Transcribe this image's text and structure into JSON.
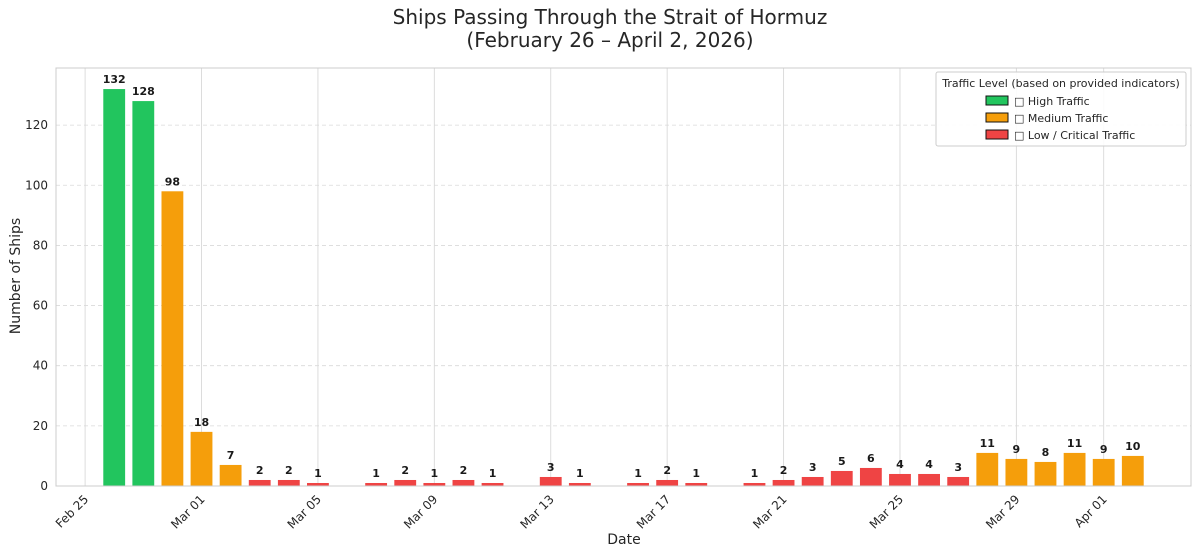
{
  "chart_data": {
    "type": "bar",
    "title": "Ships Passing Through the Strait of Hormuz",
    "subtitle": "(February 26 – April 2, 2026)",
    "xlabel": "Date",
    "ylabel": "Number of Ships",
    "ylim": [
      0,
      139
    ],
    "xlim": [
      "2026-02-24",
      "2026-04-04"
    ],
    "grid": true,
    "y_ticks": [
      0,
      20,
      40,
      60,
      80,
      100,
      120
    ],
    "x_ticks": [
      {
        "date": "2026-02-25",
        "label": "Feb 25"
      },
      {
        "date": "2026-03-01",
        "label": "Mar 01"
      },
      {
        "date": "2026-03-05",
        "label": "Mar 05"
      },
      {
        "date": "2026-03-09",
        "label": "Mar 09"
      },
      {
        "date": "2026-03-13",
        "label": "Mar 13"
      },
      {
        "date": "2026-03-17",
        "label": "Mar 17"
      },
      {
        "date": "2026-03-21",
        "label": "Mar 21"
      },
      {
        "date": "2026-03-25",
        "label": "Mar 25"
      },
      {
        "date": "2026-03-29",
        "label": "Mar 29"
      },
      {
        "date": "2026-04-01",
        "label": "Apr 01"
      }
    ],
    "bars": [
      {
        "date": "2026-02-26",
        "value": 132,
        "level": "high"
      },
      {
        "date": "2026-02-27",
        "value": 128,
        "level": "high"
      },
      {
        "date": "2026-02-28",
        "value": 98,
        "level": "medium"
      },
      {
        "date": "2026-03-01",
        "value": 18,
        "level": "medium"
      },
      {
        "date": "2026-03-02",
        "value": 7,
        "level": "medium"
      },
      {
        "date": "2026-03-03",
        "value": 2,
        "level": "low"
      },
      {
        "date": "2026-03-04",
        "value": 2,
        "level": "low"
      },
      {
        "date": "2026-03-05",
        "value": 1,
        "level": "low"
      },
      {
        "date": "2026-03-07",
        "value": 1,
        "level": "low"
      },
      {
        "date": "2026-03-08",
        "value": 2,
        "level": "low"
      },
      {
        "date": "2026-03-09",
        "value": 1,
        "level": "low"
      },
      {
        "date": "2026-03-10",
        "value": 2,
        "level": "low"
      },
      {
        "date": "2026-03-11",
        "value": 1,
        "level": "low"
      },
      {
        "date": "2026-03-13",
        "value": 3,
        "level": "low"
      },
      {
        "date": "2026-03-14",
        "value": 1,
        "level": "low"
      },
      {
        "date": "2026-03-16",
        "value": 1,
        "level": "low"
      },
      {
        "date": "2026-03-17",
        "value": 2,
        "level": "low"
      },
      {
        "date": "2026-03-18",
        "value": 1,
        "level": "low"
      },
      {
        "date": "2026-03-20",
        "value": 1,
        "level": "low"
      },
      {
        "date": "2026-03-21",
        "value": 2,
        "level": "low"
      },
      {
        "date": "2026-03-22",
        "value": 3,
        "level": "low"
      },
      {
        "date": "2026-03-23",
        "value": 5,
        "level": "low"
      },
      {
        "date": "2026-03-24",
        "value": 6,
        "level": "low"
      },
      {
        "date": "2026-03-25",
        "value": 4,
        "level": "low"
      },
      {
        "date": "2026-03-26",
        "value": 4,
        "level": "low"
      },
      {
        "date": "2026-03-27",
        "value": 3,
        "level": "low"
      },
      {
        "date": "2026-03-28",
        "value": 11,
        "level": "medium"
      },
      {
        "date": "2026-03-29",
        "value": 9,
        "level": "medium"
      },
      {
        "date": "2026-03-30",
        "value": 8,
        "level": "medium"
      },
      {
        "date": "2026-03-31",
        "value": 11,
        "level": "medium"
      },
      {
        "date": "2026-04-01",
        "value": 9,
        "level": "medium"
      },
      {
        "date": "2026-04-02",
        "value": 10,
        "level": "medium"
      }
    ],
    "colors": {
      "high": "#22c55e",
      "medium": "#f59e0b",
      "low": "#ef4444"
    },
    "legend": {
      "title": "Traffic Level (based on provided indicators)",
      "placement": "top-right",
      "items": [
        {
          "key": "high",
          "label": "□ High Traffic"
        },
        {
          "key": "medium",
          "label": "□ Medium Traffic"
        },
        {
          "key": "low",
          "label": "□ Low / Critical Traffic"
        }
      ]
    }
  }
}
